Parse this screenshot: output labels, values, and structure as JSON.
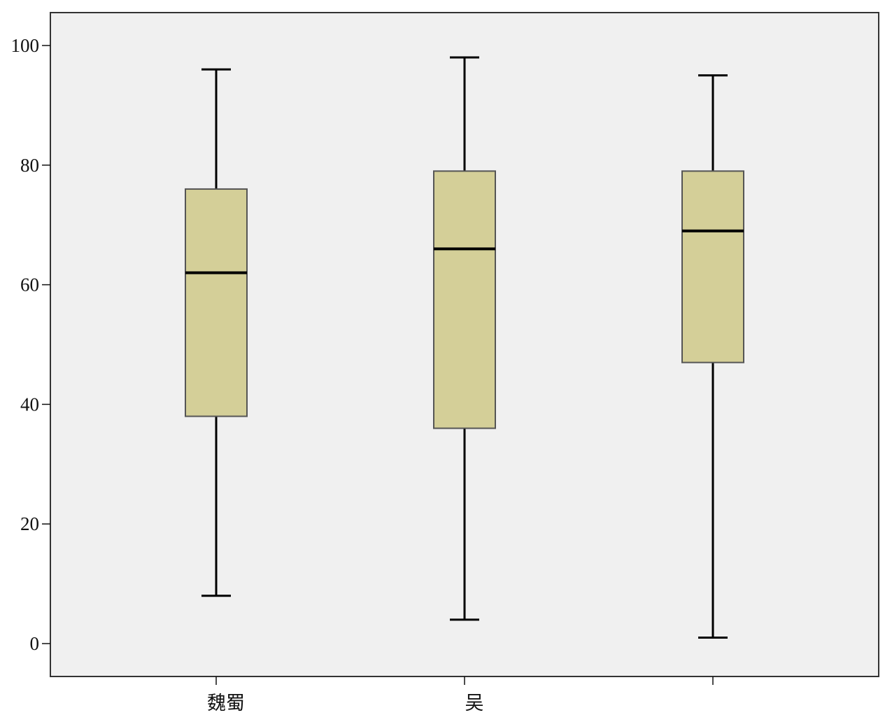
{
  "chart_data": {
    "type": "box",
    "title": "",
    "xlabel": "",
    "ylabel": "",
    "ylim": [
      -5.5,
      105.5
    ],
    "yticks": [
      0,
      20,
      40,
      60,
      80,
      100
    ],
    "ytick_labels": [
      "0",
      "20",
      "40",
      "60",
      "80",
      "100"
    ],
    "categories": [
      "魏蜀",
      "吴",
      ""
    ],
    "boxes": [
      {
        "category": "魏蜀",
        "min": 8,
        "q1": 38,
        "median": 62,
        "q3": 76,
        "max": 96
      },
      {
        "category": "吴",
        "min": 4,
        "q1": 36,
        "median": 66,
        "q3": 79,
        "max": 98
      },
      {
        "category": "",
        "min": 1,
        "q1": 47,
        "median": 69,
        "q3": 79,
        "max": 95
      }
    ],
    "grid": false,
    "legend": "none",
    "colors": {
      "plot_background": "#f0f0f0",
      "box_fill": "#d4cf98",
      "box_edge": "#555555",
      "line": "#000000",
      "frame": "#333333"
    }
  }
}
